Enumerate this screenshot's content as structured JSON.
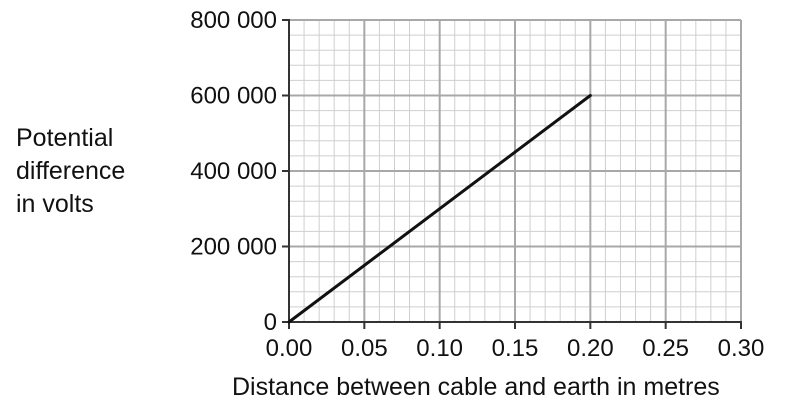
{
  "chart_data": {
    "type": "line",
    "title": "",
    "xlabel": "Distance between cable and earth in metres",
    "ylabel_lines": [
      "Potential",
      "difference",
      "in volts"
    ],
    "xlim": [
      0,
      0.3
    ],
    "ylim": [
      0,
      800000
    ],
    "x_ticks": [
      "0.00",
      "0.05",
      "0.10",
      "0.15",
      "0.20",
      "0.25",
      "0.30"
    ],
    "y_ticks": [
      "0",
      "200 000",
      "400 000",
      "600 000",
      "800 000"
    ],
    "grid": true,
    "series": [
      {
        "x": [
          0,
          0.2
        ],
        "y": [
          0,
          600000
        ]
      }
    ],
    "colors": {
      "major_grid": "#a8a8a8",
      "minor_grid": "#cfcfcf",
      "axis": "#333333",
      "line": "#111111"
    }
  }
}
